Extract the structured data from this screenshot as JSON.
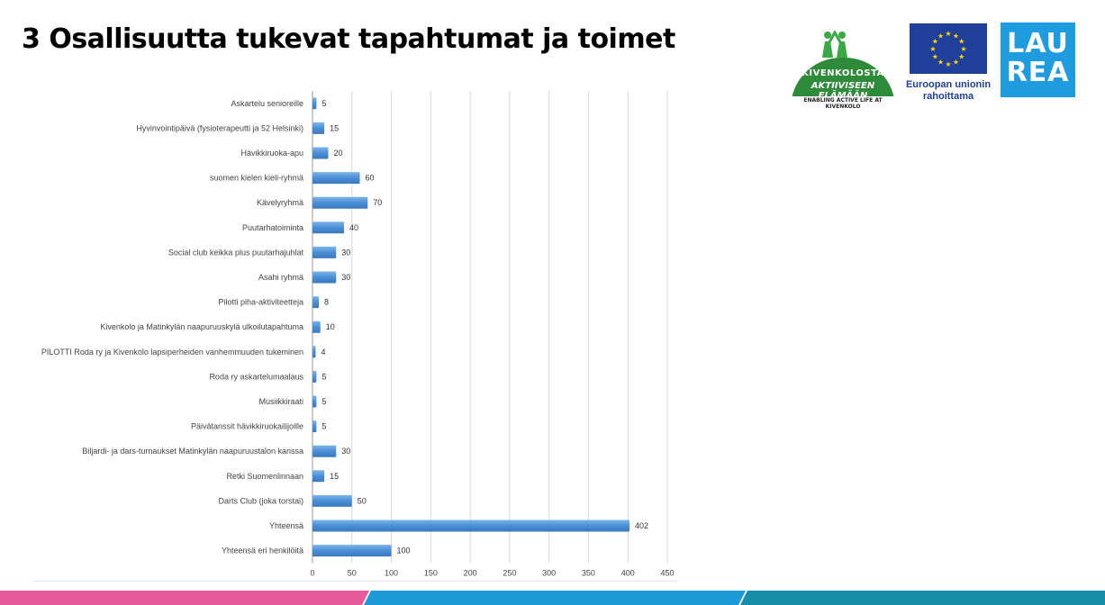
{
  "header": {
    "title": "3 Osallisuutta tukevat tapahtumat ja toimet"
  },
  "logos": {
    "kivenkolo_name": "KIVENKOLOSTA",
    "kivenkolo_sub": "AKTIIVISEEN ELÄMÄÄN",
    "kivenkolo_tag": "ENABLING ACTIVE LIFE AT KIVENKOLO",
    "eu_caption_line1": "Euroopan unionin",
    "eu_caption_line2": "rahoittama",
    "laurea_line1": "LAU",
    "laurea_line2": "REA"
  },
  "colors": {
    "bar": "#4a8fd6",
    "grid": "#d9d9d9",
    "stripe_pink": "#e75a9c",
    "stripe_blue": "#1c9ad6",
    "stripe_teal": "#178da8"
  },
  "chart_data": {
    "type": "bar",
    "orientation": "horizontal",
    "title": "",
    "xlabel": "",
    "ylabel": "",
    "xlim": [
      0,
      450
    ],
    "xticks": [
      0,
      50,
      100,
      150,
      200,
      250,
      300,
      350,
      400,
      450
    ],
    "grid": true,
    "categories": [
      "Askartelu senioreille",
      "Hyvinvointipäivä (fysioterapeutti ja 52 Helsinki)",
      "Hävikkiruoka-apu",
      "suomen kielen kieli-ryhmä",
      "Kävelyryhmä",
      "Puutarhatoiminta",
      "Social club keikka plus puutarhajuhlat",
      "Asahi ryhmä",
      "Pilotti piha-aktiviteetteja",
      "Kivenkolo ja Matinkylän naapuruuskylä ulkoilutapahtuma",
      "PILOTTI  Roda ry ja Kivenkolo lapsiperheiden vanhemmuuden tukeminen",
      "Roda ry askartelumaalaus",
      "Musiikkiraati",
      "Päivätanssit hävikkiruokailijoille",
      "Biljardi- ja dars-turnaukset Matinkylän naapuruustalon kanssa",
      "Retki Suomenlinnaan",
      "Darts Club (joka torstai)",
      "Yhteensä",
      "Yhteensä eri henkilöitä"
    ],
    "values": [
      5,
      15,
      20,
      60,
      70,
      40,
      30,
      30,
      8,
      10,
      4,
      5,
      5,
      5,
      30,
      15,
      50,
      402,
      100
    ]
  }
}
